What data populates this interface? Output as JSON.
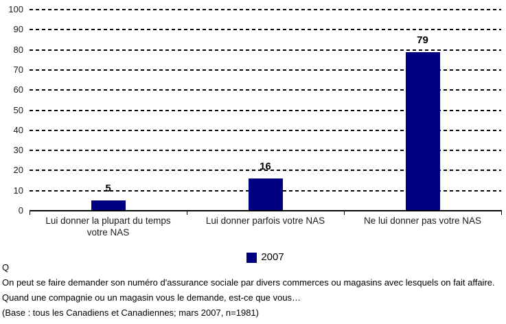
{
  "chart_data": {
    "type": "bar",
    "categories": [
      "Lui donner la plupart du temps votre NAS",
      "Lui donner parfois votre NAS",
      "Ne lui donner pas votre NAS"
    ],
    "series": [
      {
        "name": "2007",
        "values": [
          5,
          16,
          79
        ]
      }
    ],
    "title": "",
    "xlabel": "",
    "ylabel": "",
    "ylim": [
      0,
      100
    ],
    "ytick_step": 10,
    "grid": "horizontal-dashed",
    "legend_position": "bottom-center",
    "bar_color": "#000080"
  },
  "legend": {
    "label": "2007",
    "swatch_color": "#000080"
  },
  "footer": {
    "q_label": "Q",
    "question": "On peut se faire demander son numéro d'assurance sociale par divers commerces ou magasins avec lesquels on fait affaire. Quand une compagnie ou un magasin vous le demande, est-ce que vous…",
    "base_note": "(Base : tous les Canadiens et Canadiennes; mars 2007, n=1981)"
  }
}
